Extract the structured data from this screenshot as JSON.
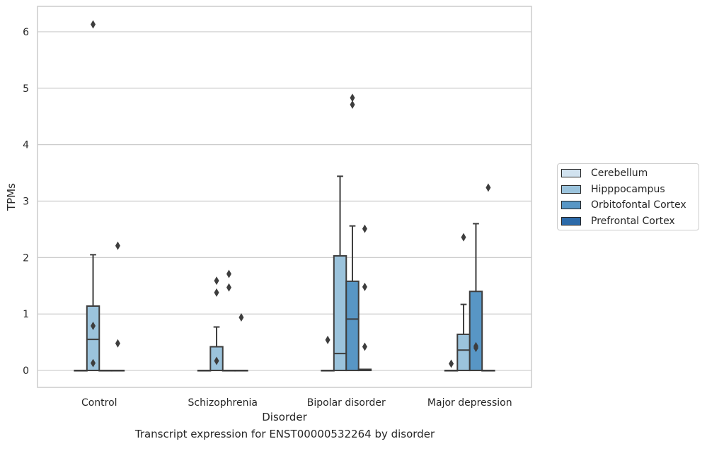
{
  "chart_data": {
    "type": "box",
    "title": "",
    "caption": "Transcript expression for ENST00000532264 by disorder",
    "xlabel": "Disorder",
    "ylabel": "TPMs",
    "ylim": [
      -0.3,
      6.45
    ],
    "yticks": [
      0,
      1,
      2,
      3,
      4,
      5,
      6
    ],
    "grid": "y",
    "legend_position": "right",
    "categories": [
      "Control",
      "Schizophrenia",
      "Bipolar disorder",
      "Major depression"
    ],
    "series": [
      {
        "name": "Cerebellum",
        "color": "#d1e2ef",
        "boxes": [
          {
            "q1": 0,
            "median": 0,
            "q3": 0,
            "whisker_low": 0,
            "whisker_high": 0,
            "outliers": []
          },
          {
            "q1": 0,
            "median": 0,
            "q3": 0,
            "whisker_low": 0,
            "whisker_high": 0,
            "outliers": []
          },
          {
            "q1": 0,
            "median": 0,
            "q3": 0,
            "whisker_low": 0,
            "whisker_high": 0,
            "outliers": [
              0.54
            ]
          },
          {
            "q1": 0,
            "median": 0,
            "q3": 0,
            "whisker_low": 0,
            "whisker_high": 0,
            "outliers": [
              0.12
            ]
          }
        ]
      },
      {
        "name": "Hipppocampus",
        "color": "#9bc3dc",
        "boxes": [
          {
            "q1": 0,
            "median": 0.55,
            "q3": 1.14,
            "whisker_low": 0,
            "whisker_high": 2.05,
            "outliers": [
              6.13,
              0.79,
              0.13
            ]
          },
          {
            "q1": 0,
            "median": 0,
            "q3": 0.42,
            "whisker_low": 0,
            "whisker_high": 0.77,
            "outliers": [
              1.59,
              1.38,
              0.17
            ]
          },
          {
            "q1": 0,
            "median": 0.3,
            "q3": 2.03,
            "whisker_low": 0,
            "whisker_high": 3.44,
            "outliers": []
          },
          {
            "q1": 0,
            "median": 0.36,
            "q3": 0.64,
            "whisker_low": 0,
            "whisker_high": 1.17,
            "outliers": [
              2.36
            ]
          }
        ]
      },
      {
        "name": "Orbitofontal Cortex",
        "color": "#5896c5",
        "boxes": [
          {
            "q1": 0,
            "median": 0,
            "q3": 0,
            "whisker_low": 0,
            "whisker_high": 0,
            "outliers": []
          },
          {
            "q1": 0,
            "median": 0,
            "q3": 0,
            "whisker_low": 0,
            "whisker_high": 0,
            "outliers": [
              1.71,
              1.47
            ]
          },
          {
            "q1": 0,
            "median": 0.91,
            "q3": 1.58,
            "whisker_low": 0,
            "whisker_high": 2.56,
            "outliers": [
              4.83,
              4.71
            ]
          },
          {
            "q1": 0,
            "median": 0,
            "q3": 1.4,
            "whisker_low": 0,
            "whisker_high": 2.6,
            "outliers": [
              0.43,
              0.4
            ]
          }
        ]
      },
      {
        "name": "Prefrontal Cortex",
        "color": "#2c6aa9",
        "boxes": [
          {
            "q1": 0,
            "median": 0,
            "q3": 0,
            "whisker_low": 0,
            "whisker_high": 0,
            "outliers": [
              2.21,
              0.48
            ]
          },
          {
            "q1": 0,
            "median": 0,
            "q3": 0,
            "whisker_low": 0,
            "whisker_high": 0,
            "outliers": [
              0.94
            ]
          },
          {
            "q1": 0,
            "median": 0,
            "q3": 0.02,
            "whisker_low": 0,
            "whisker_high": 0.02,
            "outliers": [
              2.51,
              1.48,
              0.42
            ]
          },
          {
            "q1": 0,
            "median": 0,
            "q3": 0,
            "whisker_low": 0,
            "whisker_high": 0,
            "outliers": [
              3.24
            ]
          }
        ]
      }
    ]
  }
}
